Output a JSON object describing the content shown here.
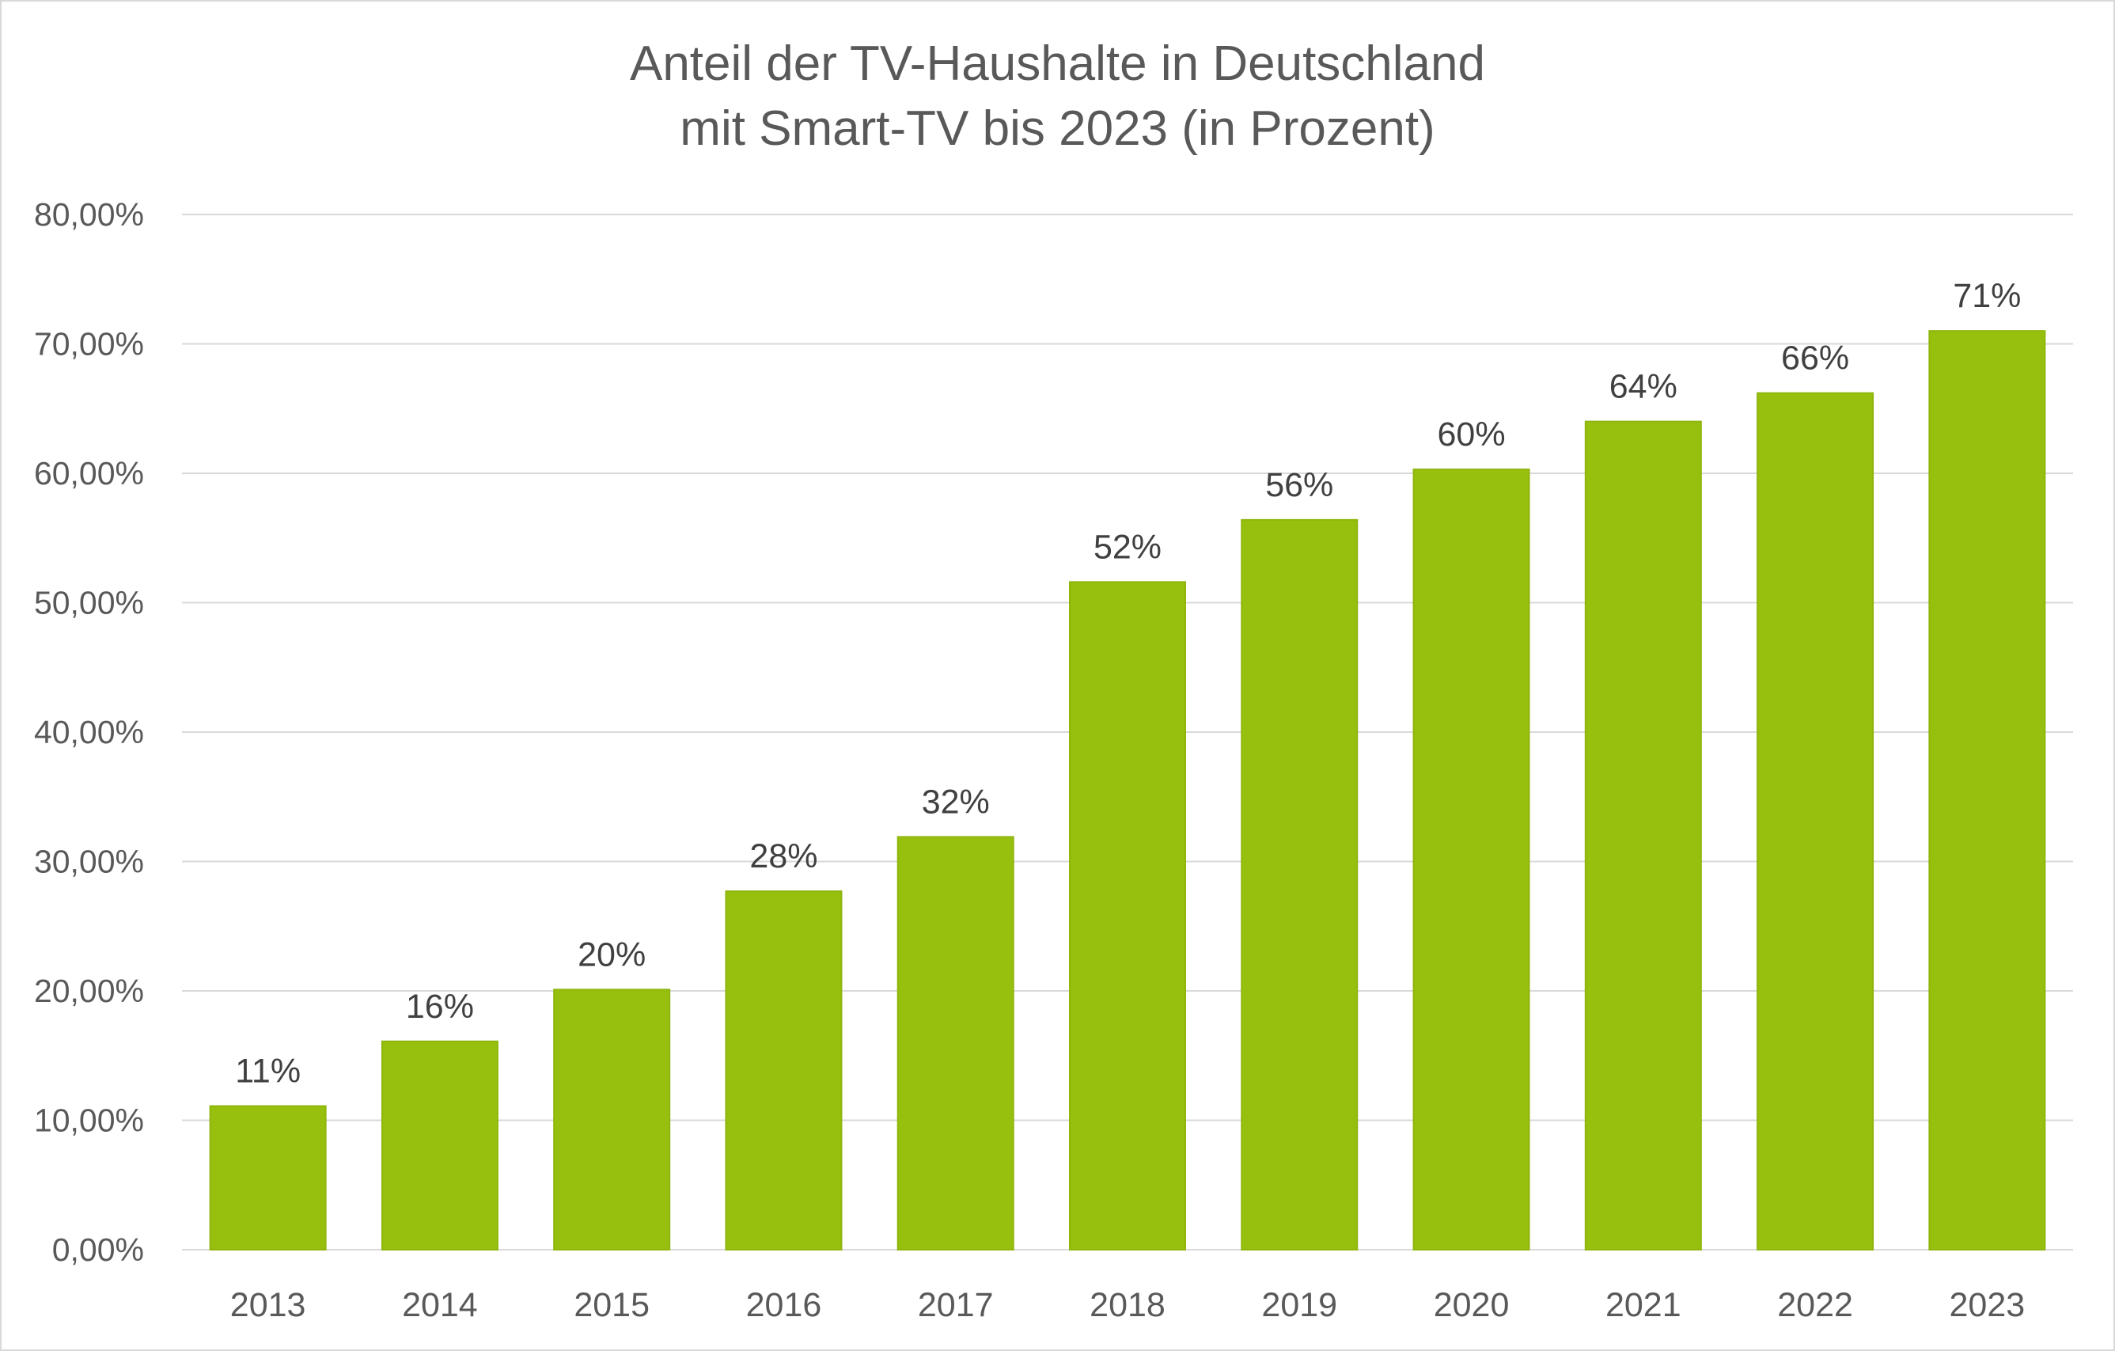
{
  "chart_data": {
    "type": "bar",
    "title_lines": [
      "Anteil der TV-Haushalte in Deutschland",
      "mit Smart-TV bis 2023 (in Prozent)"
    ],
    "categories": [
      "2013",
      "2014",
      "2015",
      "2016",
      "2017",
      "2018",
      "2019",
      "2020",
      "2021",
      "2022",
      "2023"
    ],
    "values": [
      11.1,
      16.1,
      20.1,
      27.7,
      31.9,
      51.6,
      56.4,
      60.3,
      64.0,
      66.2,
      71.0
    ],
    "data_labels": [
      "11%",
      "16%",
      "20%",
      "28%",
      "32%",
      "52%",
      "56%",
      "60%",
      "64%",
      "66%",
      "71%"
    ],
    "y_ticks": [
      "0,00%",
      "10,00%",
      "20,00%",
      "30,00%",
      "40,00%",
      "50,00%",
      "60,00%",
      "70,00%",
      "80,00%"
    ],
    "y_tick_values": [
      0,
      10,
      20,
      30,
      40,
      50,
      60,
      70,
      80
    ],
    "ylim": [
      0,
      80
    ],
    "xlabel": "",
    "ylabel": "",
    "grid": true,
    "legend": "none",
    "bar_color": "#97c00e",
    "bar_border_color": "#8fb50d",
    "gridline_color": "#d9d9d9",
    "text_color": "#595959"
  }
}
